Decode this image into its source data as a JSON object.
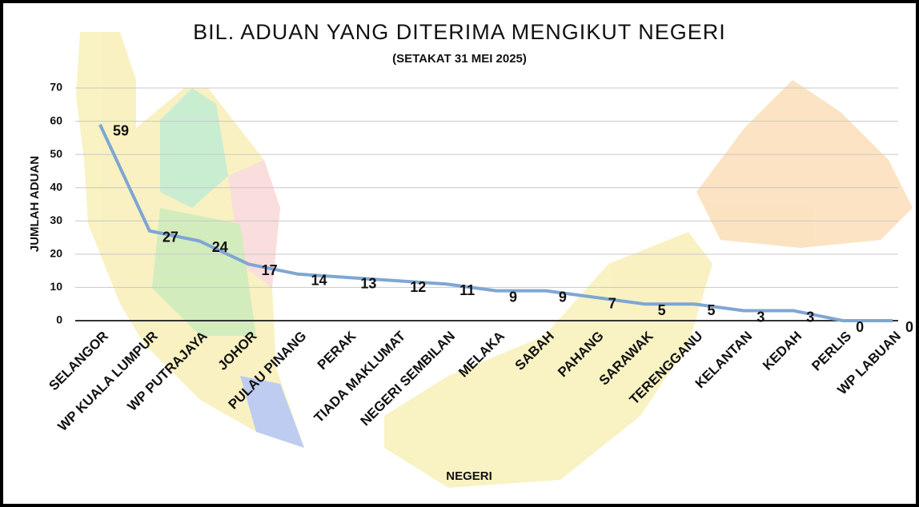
{
  "chart_data": {
    "type": "line",
    "title": "BIL. ADUAN YANG DITERIMA MENGIKUT NEGERI",
    "subtitle": "(SETAKAT 31 MEI 2025)",
    "x_label": "NEGERI",
    "y_label": "JUMLAH ADUAN",
    "categories": [
      "SELANGOR",
      "WP KUALA LUMPUR",
      "WP PUTRAJAYA",
      "JOHOR",
      "PULAU PINANG",
      "PERAK",
      "TIADA MAKLUMAT",
      "NEGERI SEMBILAN",
      "MELAKA",
      "SABAH",
      "PAHANG",
      "SARAWAK",
      "TERENGGANU",
      "KELANTAN",
      "KEDAH",
      "PERLIS",
      "WP LABUAN"
    ],
    "values": [
      59,
      27,
      24,
      17,
      14,
      13,
      12,
      11,
      9,
      9,
      7,
      5,
      5,
      3,
      3,
      0,
      0
    ],
    "color": "#7ea6d3",
    "ylim": [
      0,
      70
    ],
    "yticks": [
      0,
      10,
      20,
      30,
      40,
      50,
      60,
      70
    ],
    "grid": true
  }
}
